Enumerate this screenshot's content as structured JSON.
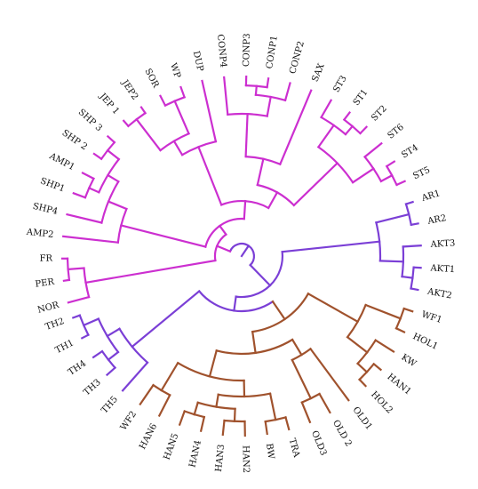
{
  "clade_colors": {
    "magenta": "#cc2fd0",
    "violet": "#7b3fd6",
    "brown": "#a0522d"
  },
  "leaves": [
    {
      "label": "NOR",
      "clade": "magenta"
    },
    {
      "label": "PER",
      "clade": "magenta"
    },
    {
      "label": "FR",
      "clade": "magenta"
    },
    {
      "label": "AMP2",
      "clade": "magenta"
    },
    {
      "label": "SHP4",
      "clade": "magenta"
    },
    {
      "label": "SHP1",
      "clade": "magenta"
    },
    {
      "label": "AMP1",
      "clade": "magenta"
    },
    {
      "label": "SHP 2",
      "clade": "magenta"
    },
    {
      "label": "SHP 3",
      "clade": "magenta"
    },
    {
      "label": "JEP 1",
      "clade": "magenta"
    },
    {
      "label": "JEP2",
      "clade": "magenta"
    },
    {
      "label": "SOR",
      "clade": "magenta"
    },
    {
      "label": "WP",
      "clade": "magenta"
    },
    {
      "label": "DUP",
      "clade": "magenta"
    },
    {
      "label": "CONP4",
      "clade": "magenta"
    },
    {
      "label": "CONP3",
      "clade": "magenta"
    },
    {
      "label": "CONP1",
      "clade": "magenta"
    },
    {
      "label": "CONP2",
      "clade": "magenta"
    },
    {
      "label": "SAX",
      "clade": "magenta"
    },
    {
      "label": "ST3",
      "clade": "magenta"
    },
    {
      "label": "ST1",
      "clade": "magenta"
    },
    {
      "label": "ST2",
      "clade": "magenta"
    },
    {
      "label": "ST6",
      "clade": "magenta"
    },
    {
      "label": "ST4",
      "clade": "magenta"
    },
    {
      "label": "ST5",
      "clade": "magenta"
    },
    {
      "label": "AR1",
      "clade": "violet"
    },
    {
      "label": "AR2",
      "clade": "violet"
    },
    {
      "label": "AKT3",
      "clade": "violet"
    },
    {
      "label": "AKT1",
      "clade": "violet"
    },
    {
      "label": "AKT2",
      "clade": "violet"
    },
    {
      "label": "WF1",
      "clade": "brown"
    },
    {
      "label": "HOL1",
      "clade": "brown"
    },
    {
      "label": "KW",
      "clade": "brown"
    },
    {
      "label": "HAN1",
      "clade": "brown"
    },
    {
      "label": "HOL2",
      "clade": "brown"
    },
    {
      "label": "OLD1",
      "clade": "brown"
    },
    {
      "label": "OLD 2",
      "clade": "brown"
    },
    {
      "label": "OLD3",
      "clade": "brown"
    },
    {
      "label": "TRA",
      "clade": "brown"
    },
    {
      "label": "BW",
      "clade": "brown"
    },
    {
      "label": "HAN2",
      "clade": "brown"
    },
    {
      "label": "HAN3",
      "clade": "brown"
    },
    {
      "label": "HAN4",
      "clade": "brown"
    },
    {
      "label": "HAN5",
      "clade": "brown"
    },
    {
      "label": "HAN6",
      "clade": "brown"
    },
    {
      "label": "WF2",
      "clade": "brown"
    },
    {
      "label": "TH5",
      "clade": "violet"
    },
    {
      "label": "TH3",
      "clade": "violet"
    },
    {
      "label": "TH4",
      "clade": "violet"
    },
    {
      "label": "TH1",
      "clade": "violet"
    },
    {
      "label": "TH2",
      "clade": "violet"
    }
  ]
}
